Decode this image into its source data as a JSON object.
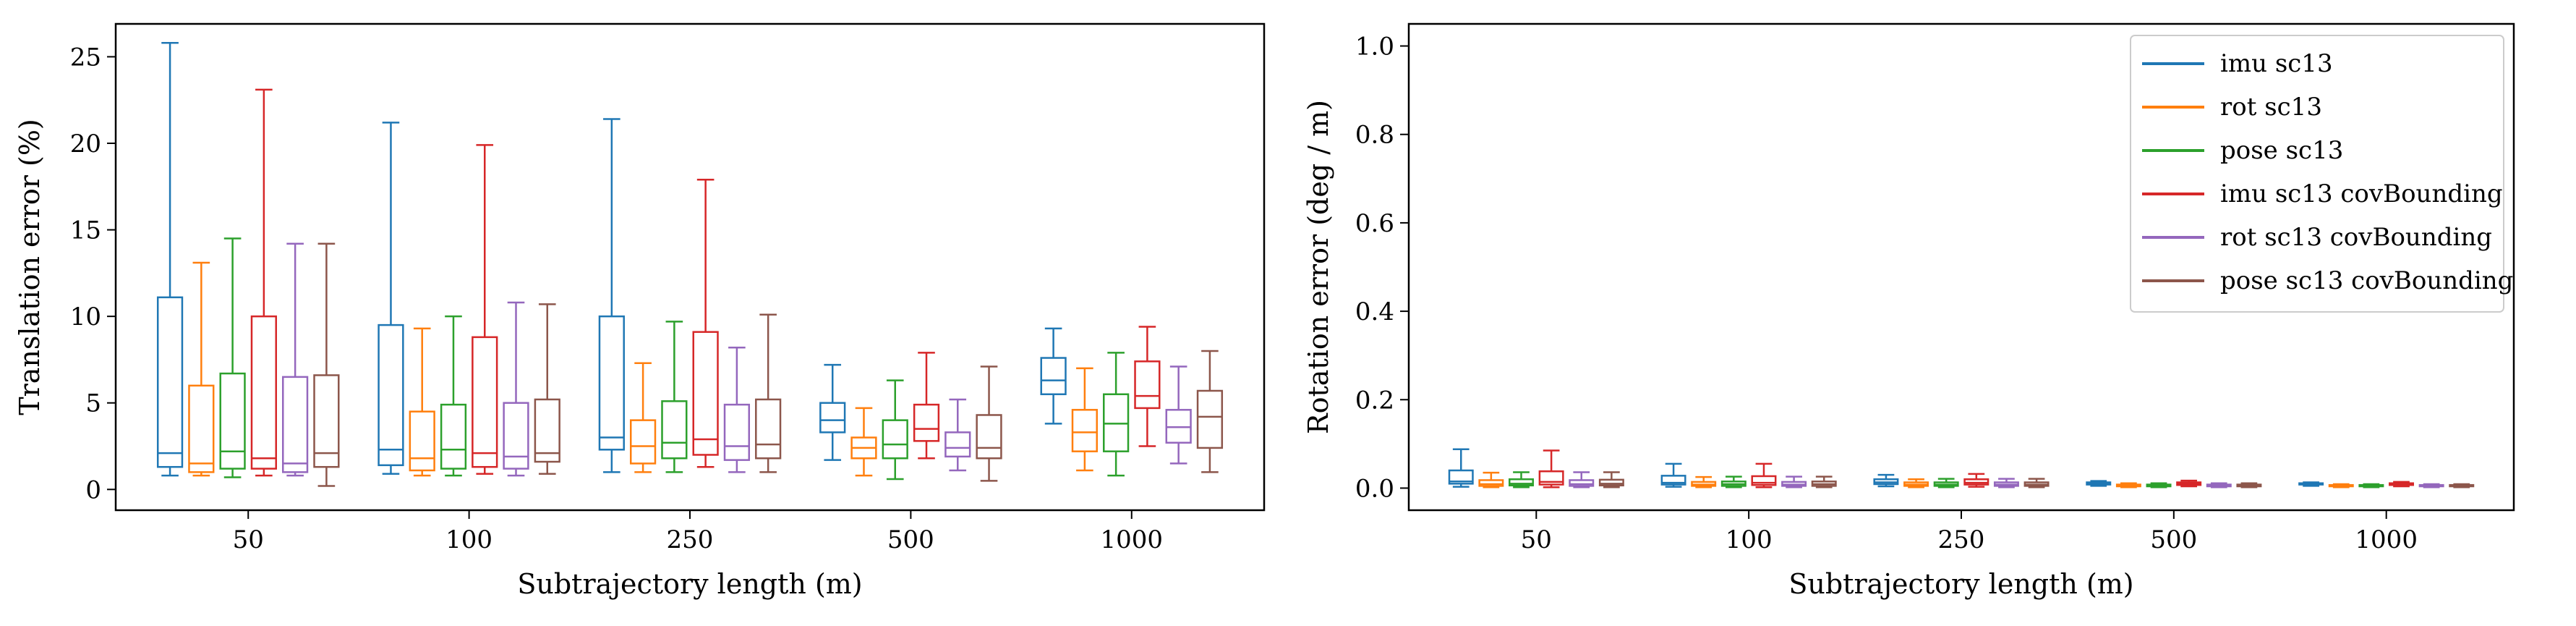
{
  "series_names": [
    "imu sc13",
    "rot sc13",
    "pose sc13",
    "imu sc13 covBounding",
    "rot sc13 covBounding",
    "pose sc13 covBounding"
  ],
  "series_colors": [
    "#1f77b4",
    "#ff7f0e",
    "#2ca02c",
    "#d62728",
    "#9467bd",
    "#8c564b"
  ],
  "legend_placement": "top-right of right panel",
  "left": {
    "ylabel": "Translation error (%)",
    "xlabel": "Subtrajectory length (m)",
    "yticks": [
      "0",
      "5",
      "10",
      "15",
      "20",
      "25"
    ]
  },
  "right": {
    "ylabel": "Rotation error (deg / m)",
    "xlabel": "Subtrajectory length (m)",
    "yticks": [
      "0.0",
      "0.2",
      "0.4",
      "0.6",
      "0.8",
      "1.0"
    ]
  },
  "chart_data": [
    {
      "type": "box",
      "xlabel": "Subtrajectory length (m)",
      "ylabel": "Translation error (%)",
      "categories": [
        "50",
        "100",
        "250",
        "500",
        "1000"
      ],
      "ylim": [
        -1.2,
        26.9
      ],
      "grid": false,
      "series": [
        {
          "name": "imu sc13",
          "boxes": [
            {
              "whislo": 0.8,
              "q1": 1.3,
              "med": 2.1,
              "q3": 11.1,
              "whishi": 25.8
            },
            {
              "whislo": 0.9,
              "q1": 1.4,
              "med": 2.3,
              "q3": 9.5,
              "whishi": 21.2
            },
            {
              "whislo": 1.0,
              "q1": 2.3,
              "med": 3.0,
              "q3": 10.0,
              "whishi": 21.4
            },
            {
              "whislo": 1.7,
              "q1": 3.3,
              "med": 4.0,
              "q3": 5.0,
              "whishi": 7.2
            },
            {
              "whislo": 3.8,
              "q1": 5.5,
              "med": 6.3,
              "q3": 7.6,
              "whishi": 9.3
            }
          ]
        },
        {
          "name": "rot sc13",
          "boxes": [
            {
              "whislo": 0.8,
              "q1": 1.0,
              "med": 1.5,
              "q3": 6.0,
              "whishi": 13.1
            },
            {
              "whislo": 0.8,
              "q1": 1.1,
              "med": 1.8,
              "q3": 4.5,
              "whishi": 9.3
            },
            {
              "whislo": 1.0,
              "q1": 1.5,
              "med": 2.5,
              "q3": 4.0,
              "whishi": 7.3
            },
            {
              "whislo": 0.8,
              "q1": 1.8,
              "med": 2.4,
              "q3": 3.0,
              "whishi": 4.7
            },
            {
              "whislo": 1.1,
              "q1": 2.2,
              "med": 3.3,
              "q3": 4.6,
              "whishi": 7.0
            }
          ]
        },
        {
          "name": "pose sc13",
          "boxes": [
            {
              "whislo": 0.7,
              "q1": 1.2,
              "med": 2.2,
              "q3": 6.7,
              "whishi": 14.5
            },
            {
              "whislo": 0.8,
              "q1": 1.2,
              "med": 2.3,
              "q3": 4.9,
              "whishi": 10.0
            },
            {
              "whislo": 1.0,
              "q1": 1.8,
              "med": 2.7,
              "q3": 5.1,
              "whishi": 9.7
            },
            {
              "whislo": 0.6,
              "q1": 1.8,
              "med": 2.6,
              "q3": 4.0,
              "whishi": 6.3
            },
            {
              "whislo": 0.8,
              "q1": 2.2,
              "med": 3.8,
              "q3": 5.5,
              "whishi": 7.9
            }
          ]
        },
        {
          "name": "imu sc13 covBounding",
          "boxes": [
            {
              "whislo": 0.8,
              "q1": 1.2,
              "med": 1.8,
              "q3": 10.0,
              "whishi": 23.1
            },
            {
              "whislo": 0.9,
              "q1": 1.3,
              "med": 2.1,
              "q3": 8.8,
              "whishi": 19.9
            },
            {
              "whislo": 1.3,
              "q1": 2.0,
              "med": 2.9,
              "q3": 9.1,
              "whishi": 17.9
            },
            {
              "whislo": 1.8,
              "q1": 2.8,
              "med": 3.5,
              "q3": 4.9,
              "whishi": 7.9
            },
            {
              "whislo": 2.5,
              "q1": 4.7,
              "med": 5.4,
              "q3": 7.4,
              "whishi": 9.4
            }
          ]
        },
        {
          "name": "rot sc13 covBounding",
          "boxes": [
            {
              "whislo": 0.8,
              "q1": 1.0,
              "med": 1.5,
              "q3": 6.5,
              "whishi": 14.2
            },
            {
              "whislo": 0.8,
              "q1": 1.2,
              "med": 1.9,
              "q3": 5.0,
              "whishi": 10.8
            },
            {
              "whislo": 1.0,
              "q1": 1.7,
              "med": 2.5,
              "q3": 4.9,
              "whishi": 8.2
            },
            {
              "whislo": 1.1,
              "q1": 1.9,
              "med": 2.4,
              "q3": 3.3,
              "whishi": 5.2
            },
            {
              "whislo": 1.5,
              "q1": 2.7,
              "med": 3.6,
              "q3": 4.6,
              "whishi": 7.1
            }
          ]
        },
        {
          "name": "pose sc13 covBounding",
          "boxes": [
            {
              "whislo": 0.2,
              "q1": 1.3,
              "med": 2.1,
              "q3": 6.6,
              "whishi": 14.2
            },
            {
              "whislo": 0.9,
              "q1": 1.6,
              "med": 2.1,
              "q3": 5.2,
              "whishi": 10.7
            },
            {
              "whislo": 1.0,
              "q1": 1.8,
              "med": 2.6,
              "q3": 5.2,
              "whishi": 10.1
            },
            {
              "whislo": 0.5,
              "q1": 1.8,
              "med": 2.4,
              "q3": 4.3,
              "whishi": 7.1
            },
            {
              "whislo": 1.0,
              "q1": 2.4,
              "med": 4.2,
              "q3": 5.7,
              "whishi": 8.0
            }
          ]
        }
      ]
    },
    {
      "type": "box",
      "xlabel": "Subtrajectory length (m)",
      "ylabel": "Rotation error (deg / m)",
      "categories": [
        "50",
        "100",
        "250",
        "500",
        "1000"
      ],
      "ylim": [
        -0.05,
        1.05
      ],
      "grid": false,
      "series": [
        {
          "name": "imu sc13",
          "boxes": [
            {
              "whislo": 0.003,
              "q1": 0.01,
              "med": 0.015,
              "q3": 0.04,
              "whishi": 0.088
            },
            {
              "whislo": 0.003,
              "q1": 0.008,
              "med": 0.012,
              "q3": 0.028,
              "whishi": 0.055
            },
            {
              "whislo": 0.004,
              "q1": 0.009,
              "med": 0.013,
              "q3": 0.02,
              "whishi": 0.03
            },
            {
              "whislo": 0.005,
              "q1": 0.008,
              "med": 0.01,
              "q3": 0.013,
              "whishi": 0.016
            },
            {
              "whislo": 0.005,
              "q1": 0.008,
              "med": 0.009,
              "q3": 0.011,
              "whishi": 0.013
            }
          ]
        },
        {
          "name": "rot sc13",
          "boxes": [
            {
              "whislo": 0.002,
              "q1": 0.005,
              "med": 0.009,
              "q3": 0.018,
              "whishi": 0.035
            },
            {
              "whislo": 0.002,
              "q1": 0.005,
              "med": 0.008,
              "q3": 0.014,
              "whishi": 0.025
            },
            {
              "whislo": 0.002,
              "q1": 0.005,
              "med": 0.008,
              "q3": 0.013,
              "whishi": 0.02
            },
            {
              "whislo": 0.002,
              "q1": 0.004,
              "med": 0.006,
              "q3": 0.008,
              "whishi": 0.011
            },
            {
              "whislo": 0.002,
              "q1": 0.004,
              "med": 0.005,
              "q3": 0.007,
              "whishi": 0.009
            }
          ]
        },
        {
          "name": "pose sc13",
          "boxes": [
            {
              "whislo": 0.002,
              "q1": 0.006,
              "med": 0.01,
              "q3": 0.02,
              "whishi": 0.036
            },
            {
              "whislo": 0.002,
              "q1": 0.005,
              "med": 0.009,
              "q3": 0.015,
              "whishi": 0.026
            },
            {
              "whislo": 0.002,
              "q1": 0.005,
              "med": 0.008,
              "q3": 0.013,
              "whishi": 0.021
            },
            {
              "whislo": 0.002,
              "q1": 0.004,
              "med": 0.006,
              "q3": 0.008,
              "whishi": 0.011
            },
            {
              "whislo": 0.002,
              "q1": 0.004,
              "med": 0.005,
              "q3": 0.007,
              "whishi": 0.009
            }
          ]
        },
        {
          "name": "imu sc13 covBounding",
          "boxes": [
            {
              "whislo": 0.002,
              "q1": 0.008,
              "med": 0.014,
              "q3": 0.038,
              "whishi": 0.085
            },
            {
              "whislo": 0.002,
              "q1": 0.007,
              "med": 0.012,
              "q3": 0.027,
              "whishi": 0.055
            },
            {
              "whislo": 0.003,
              "q1": 0.008,
              "med": 0.012,
              "q3": 0.02,
              "whishi": 0.032
            },
            {
              "whislo": 0.004,
              "q1": 0.007,
              "med": 0.01,
              "q3": 0.013,
              "whishi": 0.017
            },
            {
              "whislo": 0.004,
              "q1": 0.007,
              "med": 0.009,
              "q3": 0.011,
              "whishi": 0.014
            }
          ]
        },
        {
          "name": "rot sc13 covBounding",
          "boxes": [
            {
              "whislo": 0.002,
              "q1": 0.005,
              "med": 0.009,
              "q3": 0.018,
              "whishi": 0.036
            },
            {
              "whislo": 0.002,
              "q1": 0.005,
              "med": 0.008,
              "q3": 0.014,
              "whishi": 0.026
            },
            {
              "whislo": 0.002,
              "q1": 0.005,
              "med": 0.008,
              "q3": 0.013,
              "whishi": 0.021
            },
            {
              "whislo": 0.002,
              "q1": 0.004,
              "med": 0.006,
              "q3": 0.008,
              "whishi": 0.011
            },
            {
              "whislo": 0.002,
              "q1": 0.004,
              "med": 0.005,
              "q3": 0.007,
              "whishi": 0.009
            }
          ]
        },
        {
          "name": "pose sc13 covBounding",
          "boxes": [
            {
              "whislo": 0.002,
              "q1": 0.006,
              "med": 0.01,
              "q3": 0.019,
              "whishi": 0.036
            },
            {
              "whislo": 0.002,
              "q1": 0.005,
              "med": 0.009,
              "q3": 0.015,
              "whishi": 0.026
            },
            {
              "whislo": 0.002,
              "q1": 0.005,
              "med": 0.008,
              "q3": 0.013,
              "whishi": 0.021
            },
            {
              "whislo": 0.002,
              "q1": 0.004,
              "med": 0.006,
              "q3": 0.008,
              "whishi": 0.011
            },
            {
              "whislo": 0.002,
              "q1": 0.004,
              "med": 0.005,
              "q3": 0.007,
              "whishi": 0.009
            }
          ]
        }
      ]
    }
  ]
}
